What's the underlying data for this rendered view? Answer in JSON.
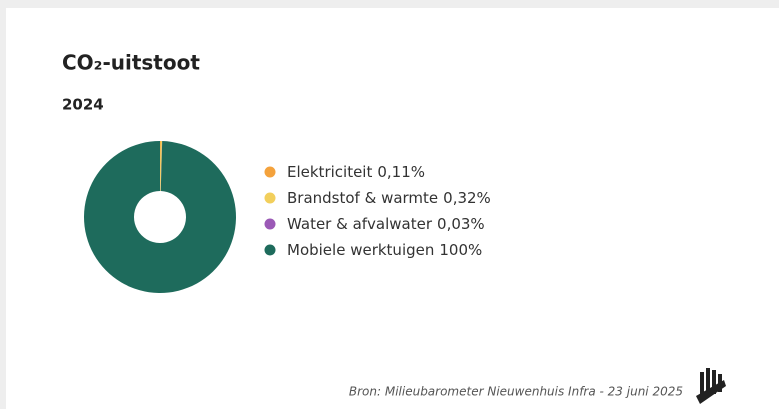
{
  "chart_data": {
    "type": "pie",
    "donut": true,
    "title": "CO₂-uitstoot",
    "subtitle": "2024",
    "categories": [
      "Elektriciteit",
      "Brandstof & warmte",
      "Water & afvalwater",
      "Mobiele werktuigen"
    ],
    "values": [
      0.11,
      0.32,
      0.03,
      100
    ],
    "value_labels": [
      "0,11%",
      "0,32%",
      "0,03%",
      "100%"
    ],
    "colors": [
      "#f4a23c",
      "#f2cf5c",
      "#9b59b6",
      "#1e6b5c"
    ],
    "legend": "right",
    "source": "Bron: Milieubarometer Nieuwenhuis Infra - 23 juni 2025"
  }
}
